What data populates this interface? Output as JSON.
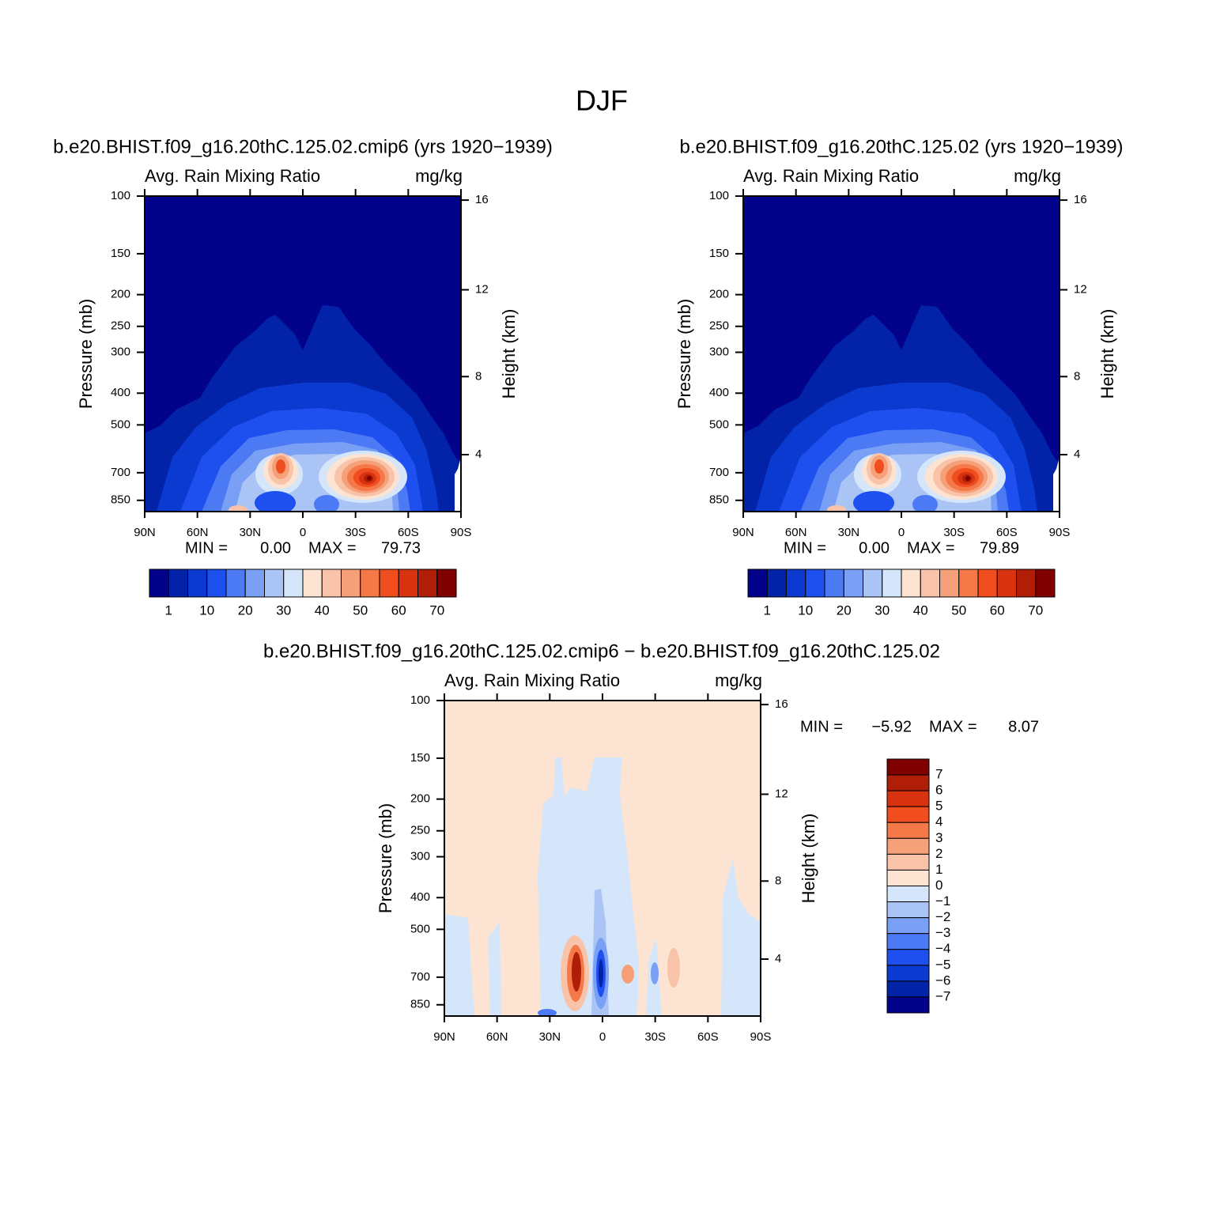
{
  "title": "DJF",
  "chart_data": [
    {
      "type": "contour",
      "title": "b.e20.BHIST.f09_g16.20thC.125.02.cmip6 (yrs 1920−1939)",
      "subtitle_left": "Avg. Rain Mixing Ratio",
      "subtitle_right": "mg/kg",
      "ylabel": "Pressure (mb)",
      "y2label": "Height (km)",
      "y_scale": "log",
      "y2_scale": "standard-atmosphere",
      "xlim": [
        90,
        -90
      ],
      "xticks": [
        {
          "value": 90,
          "label": "90N"
        },
        {
          "value": 60,
          "label": "60N"
        },
        {
          "value": 30,
          "label": "30N"
        },
        0,
        {
          "value": -30,
          "label": "30S"
        },
        {
          "value": -60,
          "label": "60S"
        },
        {
          "value": -90,
          "label": "90S"
        }
      ],
      "ylim": [
        920,
        100
      ],
      "yticks": [
        100,
        150,
        200,
        250,
        300,
        400,
        500,
        700,
        850
      ],
      "y2ticks": [
        4,
        8,
        12,
        16
      ],
      "min_text": "MIN =",
      "min": {
        "value": 0,
        "label": "0.00"
      },
      "max_text": "MAX =",
      "max": 79.73,
      "colorbar": {
        "orientation": "horizontal",
        "colors": [
          "#02028a",
          "#0222a8",
          "#0a3ad0",
          "#1e50f0",
          "#4c7af5",
          "#7aa0f5",
          "#aac4f5",
          "#d6e6fa",
          "#fde4d2",
          "#f8c3a8",
          "#f6a07a",
          "#f47848",
          "#f04e1e",
          "#d83210",
          "#b01e08",
          "#800000"
        ],
        "ticks": [
          1,
          10,
          20,
          30,
          40,
          50,
          60,
          70
        ]
      }
    },
    {
      "type": "contour",
      "title": "b.e20.BHIST.f09_g16.20thC.125.02 (yrs 1920−1939)",
      "subtitle_left": "Avg. Rain Mixing Ratio",
      "subtitle_right": "mg/kg",
      "ylabel": "Pressure (mb)",
      "y2label": "Height (km)",
      "y_scale": "log",
      "y2_scale": "standard-atmosphere",
      "xlim": [
        90,
        -90
      ],
      "xticks": [
        {
          "value": 90,
          "label": "90N"
        },
        {
          "value": 60,
          "label": "60N"
        },
        {
          "value": 30,
          "label": "30N"
        },
        0,
        {
          "value": -30,
          "label": "30S"
        },
        {
          "value": -60,
          "label": "60S"
        },
        {
          "value": -90,
          "label": "90S"
        }
      ],
      "ylim": [
        920,
        100
      ],
      "yticks": [
        100,
        150,
        200,
        250,
        300,
        400,
        500,
        700,
        850
      ],
      "y2ticks": [
        4,
        8,
        12,
        16
      ],
      "min_text": "MIN =",
      "min": {
        "value": 0,
        "label": "0.00"
      },
      "max_text": "MAX =",
      "max": 79.89,
      "colorbar": {
        "orientation": "horizontal",
        "colors": [
          "#02028a",
          "#0222a8",
          "#0a3ad0",
          "#1e50f0",
          "#4c7af5",
          "#7aa0f5",
          "#aac4f5",
          "#d6e6fa",
          "#fde4d2",
          "#f8c3a8",
          "#f6a07a",
          "#f47848",
          "#f04e1e",
          "#d83210",
          "#b01e08",
          "#800000"
        ],
        "ticks": [
          1,
          10,
          20,
          30,
          40,
          50,
          60,
          70
        ]
      }
    },
    {
      "type": "contour",
      "title": "b.e20.BHIST.f09_g16.20thC.125.02.cmip6 − b.e20.BHIST.f09_g16.20thC.125.02",
      "subtitle_left": "Avg. Rain Mixing Ratio",
      "subtitle_right": "mg/kg",
      "ylabel": "Pressure (mb)",
      "y2label": "Height (km)",
      "y_scale": "log",
      "y2_scale": "standard-atmosphere",
      "xlim": [
        90,
        -90
      ],
      "xticks": [
        {
          "value": 90,
          "label": "90N"
        },
        {
          "value": 60,
          "label": "60N"
        },
        {
          "value": 30,
          "label": "30N"
        },
        0,
        {
          "value": -30,
          "label": "30S"
        },
        {
          "value": -60,
          "label": "60S"
        },
        {
          "value": -90,
          "label": "90S"
        }
      ],
      "ylim": [
        920,
        100
      ],
      "yticks": [
        100,
        150,
        200,
        250,
        300,
        400,
        500,
        700,
        850
      ],
      "y2ticks": [
        4,
        8,
        12,
        16
      ],
      "min_text": "MIN =",
      "min": {
        "value": -5.92,
        "label": "−5.92"
      },
      "max_text": "MAX =",
      "max": 8.07,
      "colorbar": {
        "orientation": "vertical",
        "colors": [
          "#800000",
          "#b01e08",
          "#d83210",
          "#f04e1e",
          "#f47848",
          "#f6a07a",
          "#f8c3a8",
          "#fde4d2",
          "#d6e6fa",
          "#aac4f5",
          "#7aa0f5",
          "#4c7af5",
          "#1e50f0",
          "#0a3ad0",
          "#0222a8",
          "#02028a"
        ],
        "ticks": [
          7,
          6,
          5,
          4,
          3,
          2,
          1,
          0,
          {
            "value": -1,
            "label": "−1"
          },
          {
            "value": -2,
            "label": "−2"
          },
          {
            "value": -3,
            "label": "−3"
          },
          {
            "value": -4,
            "label": "−4"
          },
          {
            "value": -5,
            "label": "−5"
          },
          {
            "value": -6,
            "label": "−6"
          },
          {
            "value": -7,
            "label": "−7"
          }
        ]
      }
    }
  ]
}
